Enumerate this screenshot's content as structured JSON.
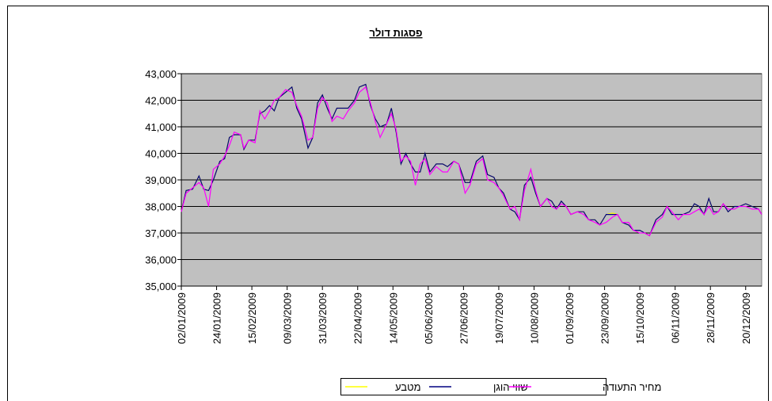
{
  "chart_data": {
    "type": "line",
    "title": "פסגות דולר",
    "x": [
      "02/01/2009",
      "05/01/2009",
      "09/01/2009",
      "13/01/2009",
      "16/01/2009",
      "19/01/2009",
      "22/01/2009",
      "26/01/2009",
      "29/01/2009",
      "01/02/2009",
      "04/02/2009",
      "08/02/2009",
      "10/02/2009",
      "13/02/2009",
      "17/02/2009",
      "20/02/2009",
      "23/02/2009",
      "26/02/2009",
      "01/03/2009",
      "04/03/2009",
      "08/03/2009",
      "12/03/2009",
      "15/03/2009",
      "18/03/2009",
      "22/03/2009",
      "25/03/2009",
      "28/03/2009",
      "31/03/2009",
      "03/04/2009",
      "06/04/2009",
      "09/04/2009",
      "13/04/2009",
      "16/04/2009",
      "20/04/2009",
      "23/04/2009",
      "27/04/2009",
      "30/04/2009",
      "03/05/2009",
      "06/05/2009",
      "10/05/2009",
      "13/05/2009",
      "16/05/2009",
      "19/05/2009",
      "22/05/2009",
      "25/05/2009",
      "28/05/2009",
      "31/05/2009",
      "03/06/2009",
      "06/06/2009",
      "10/06/2009",
      "14/06/2009",
      "17/06/2009",
      "21/06/2009",
      "24/06/2009",
      "28/06/2009",
      "01/07/2009",
      "05/07/2009",
      "09/07/2009",
      "12/07/2009",
      "16/07/2009",
      "19/07/2009",
      "22/07/2009",
      "26/07/2009",
      "29/07/2009",
      "01/08/2009",
      "04/08/2009",
      "08/08/2009",
      "11/08/2009",
      "14/08/2009",
      "18/08/2009",
      "21/08/2009",
      "24/08/2009",
      "27/08/2009",
      "30/08/2009",
      "02/09/2009",
      "06/09/2009",
      "10/09/2009",
      "13/09/2009",
      "17/09/2009",
      "20/09/2009",
      "24/09/2009",
      "28/09/2009",
      "01/10/2009",
      "04/10/2009",
      "08/10/2009",
      "11/10/2009",
      "15/10/2009",
      "18/10/2009",
      "21/10/2009",
      "25/10/2009",
      "29/10/2009",
      "01/11/2009",
      "04/11/2009",
      "08/11/2009",
      "11/11/2009",
      "15/11/2009",
      "18/11/2009",
      "21/11/2009",
      "24/11/2009",
      "27/11/2009",
      "30/11/2009",
      "03/12/2009",
      "06/12/2009",
      "09/12/2009",
      "13/12/2009",
      "16/12/2009",
      "20/12/2009",
      "24/12/2009",
      "28/12/2009",
      "30/12/2009"
    ],
    "series": [
      {
        "name": "מטבע",
        "color": "#ffff00",
        "values": [
          37800,
          38600,
          38650,
          39150,
          38650,
          38600,
          39000,
          39700,
          39800,
          40600,
          40700,
          40700,
          40150,
          40500,
          40500,
          41500,
          41600,
          41800,
          41600,
          42100,
          42300,
          42500,
          41700,
          41300,
          40200,
          40600,
          41900,
          42200,
          41700,
          41300,
          41700,
          41700,
          41700,
          42000,
          42500,
          42600,
          41800,
          41300,
          41000,
          41100,
          41700,
          40800,
          39600,
          40000,
          39600,
          39300,
          39300,
          40000,
          39300,
          39600,
          39600,
          39500,
          39700,
          39600,
          38900,
          38900,
          39700,
          39900,
          39200,
          39100,
          38700,
          38500,
          37900,
          37800,
          37500,
          38800,
          39100,
          38500,
          38000,
          38300,
          38200,
          37900,
          38200,
          38000,
          37700,
          37800,
          37800,
          37500,
          37500,
          37300,
          37700,
          37750,
          37700,
          37400,
          37300,
          37100,
          37100,
          37000,
          36900,
          37500,
          37700,
          38000,
          37700,
          37700,
          37700,
          37800,
          38100,
          38000,
          37700,
          38300,
          37800,
          37800,
          38100,
          37800,
          38000,
          38000,
          38100,
          38000,
          37900,
          37700
        ]
      },
      {
        "name": "שווי הוגן",
        "color": "#000080",
        "values": [
          37800,
          38600,
          38650,
          39150,
          38650,
          38600,
          39000,
          39700,
          39800,
          40600,
          40700,
          40700,
          40150,
          40500,
          40500,
          41500,
          41600,
          41800,
          41600,
          42100,
          42300,
          42500,
          41700,
          41300,
          40200,
          40600,
          41900,
          42200,
          41700,
          41300,
          41700,
          41700,
          41700,
          42000,
          42500,
          42600,
          41800,
          41300,
          41000,
          41100,
          41700,
          40800,
          39600,
          40000,
          39600,
          39300,
          39300,
          40000,
          39300,
          39600,
          39600,
          39500,
          39700,
          39600,
          38900,
          38900,
          39700,
          39900,
          39200,
          39100,
          38700,
          38500,
          37900,
          37800,
          37500,
          38800,
          39100,
          38500,
          38000,
          38300,
          38200,
          37900,
          38200,
          38000,
          37700,
          37800,
          37800,
          37500,
          37500,
          37300,
          37700,
          37700,
          37700,
          37400,
          37300,
          37100,
          37100,
          37000,
          36900,
          37500,
          37700,
          38000,
          37700,
          37700,
          37700,
          37800,
          38100,
          38000,
          37700,
          38300,
          37800,
          37800,
          38100,
          37800,
          38000,
          38000,
          38100,
          38000,
          37900,
          37700
        ]
      },
      {
        "name": "מחיר התעודה",
        "color": "#ff00ff",
        "values": [
          37800,
          38500,
          38700,
          38900,
          38700,
          38000,
          39400,
          39600,
          39900,
          40300,
          40800,
          40700,
          40200,
          40500,
          40400,
          41600,
          41300,
          41600,
          42000,
          42100,
          42400,
          42300,
          41800,
          41400,
          40500,
          40600,
          41700,
          42100,
          41900,
          41200,
          41400,
          41300,
          41600,
          41900,
          42300,
          42500,
          41900,
          41200,
          40600,
          41100,
          41500,
          40900,
          39700,
          39900,
          39700,
          38800,
          39600,
          39800,
          39200,
          39500,
          39300,
          39300,
          39700,
          39600,
          38500,
          38800,
          39600,
          39800,
          39000,
          38900,
          38700,
          38400,
          37900,
          38000,
          37500,
          38600,
          39400,
          38600,
          38000,
          38300,
          38000,
          37900,
          38100,
          38000,
          37700,
          37800,
          37700,
          37500,
          37400,
          37300,
          37400,
          37600,
          37700,
          37400,
          37400,
          37100,
          37000,
          37000,
          36900,
          37400,
          37600,
          38000,
          37800,
          37500,
          37700,
          37700,
          37800,
          37900,
          37700,
          38000,
          37700,
          37800,
          38100,
          37900,
          37900,
          38000,
          38000,
          37900,
          37900,
          37700
        ]
      }
    ],
    "xlim": [
      "02/01/2009",
      "30/12/2009"
    ],
    "xticks": [
      "02/01/2009",
      "24/01/2009",
      "15/02/2009",
      "09/03/2009",
      "31/03/2009",
      "22/04/2009",
      "14/05/2009",
      "05/06/2009",
      "27/06/2009",
      "19/07/2009",
      "10/08/2009",
      "01/09/2009",
      "23/09/2009",
      "15/10/2009",
      "06/11/2009",
      "28/11/2009",
      "20/12/2009"
    ],
    "ylim": [
      35000,
      43000
    ],
    "yticks": [
      {
        "value": 35000,
        "label": "35,000"
      },
      {
        "value": 36000,
        "label": "36,000"
      },
      {
        "value": 37000,
        "label": "37,000"
      },
      {
        "value": 38000,
        "label": "38,000"
      },
      {
        "value": 39000,
        "label": "39,000"
      },
      {
        "value": 40000,
        "label": "40,000"
      },
      {
        "value": 41000,
        "label": "41,000"
      },
      {
        "value": 42000,
        "label": "42,000"
      },
      {
        "value": 43000,
        "label": "43,000"
      }
    ],
    "grid": true,
    "legend": "bottom"
  }
}
